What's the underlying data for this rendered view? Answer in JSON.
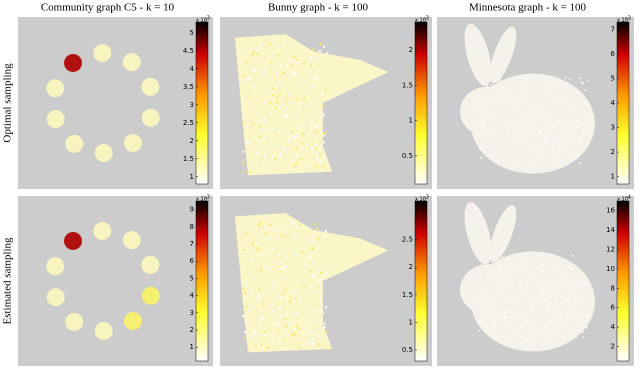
{
  "columns": [
    "Community graph C5 - k = 10",
    "Bunny graph - k = 100",
    "Minnesota graph - k = 100"
  ],
  "rows": [
    "Optimal sampling",
    "Estimated sampling"
  ],
  "panels": [
    [
      {
        "colorbar": {
          "clim": [
            0.8,
            5.3
          ],
          "ticks": [
            1,
            1.5,
            2,
            2.5,
            3,
            3.5,
            4,
            4.5,
            5
          ],
          "base": "x 10",
          "power": "-3"
        }
      },
      {
        "colorbar": {
          "clim": [
            0.1,
            2.4
          ],
          "ticks": [
            0.5,
            1,
            1.5,
            2
          ],
          "base": "x 10",
          "power": "-3"
        }
      },
      {
        "colorbar": {
          "clim": [
            0.7,
            7.3
          ],
          "ticks": [
            1,
            2,
            3,
            4,
            5,
            6,
            7
          ],
          "base": "x 10",
          "power": "-3"
        }
      }
    ],
    [
      {
        "colorbar": {
          "clim": [
            0.2,
            9.5
          ],
          "ticks": [
            1,
            2,
            3,
            4,
            5,
            6,
            7,
            8,
            9
          ],
          "base": "x 10",
          "power": "-3"
        }
      },
      {
        "colorbar": {
          "clim": [
            0.3,
            3.2
          ],
          "ticks": [
            0.5,
            1,
            1.5,
            2,
            2.5
          ],
          "base": "x 10",
          "power": "-3"
        }
      },
      {
        "colorbar": {
          "clim": [
            0.5,
            17
          ],
          "ticks": [
            2,
            4,
            6,
            8,
            10,
            12,
            14,
            16
          ],
          "base": "x 10",
          "power": "-4"
        }
      }
    ]
  ]
}
